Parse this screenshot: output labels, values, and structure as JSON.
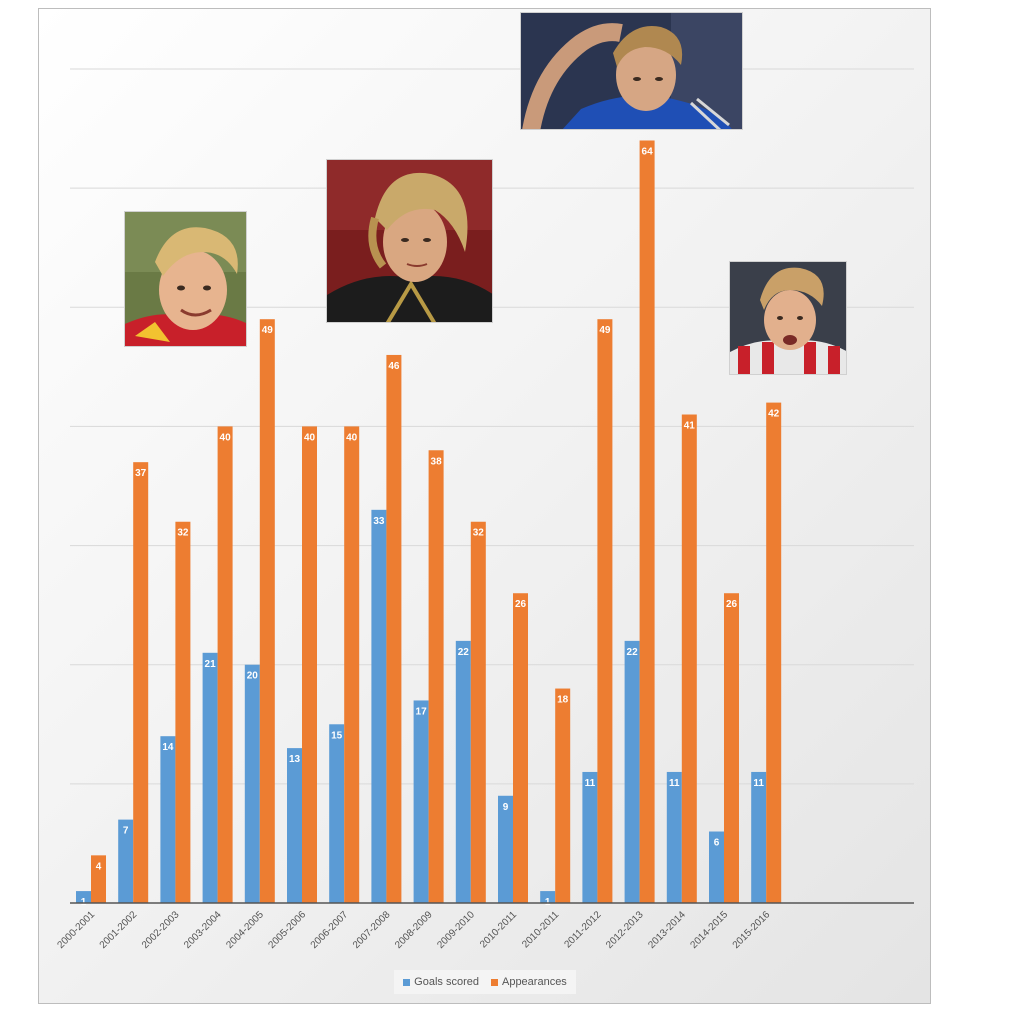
{
  "chart_data": {
    "type": "bar",
    "categories": [
      "2000-2001",
      "2001-2002",
      "2002-2003",
      "2003-2004",
      "2004-2005",
      "2005-2006",
      "2006-2007",
      "2007-2008",
      "2008-2009",
      "2009-2010",
      "2010-2011",
      "2010-2011",
      "2011-2012",
      "2012-2013",
      "2013-2014",
      "2014-2015",
      "2015-2016"
    ],
    "series": [
      {
        "name": "Goals scored",
        "color": "#5b9bd5",
        "values": [
          1,
          7,
          14,
          21,
          20,
          13,
          15,
          33,
          17,
          22,
          9,
          1,
          11,
          22,
          11,
          6,
          11
        ]
      },
      {
        "name": "Appearances",
        "color": "#ed7d31",
        "values": [
          4,
          37,
          32,
          40,
          49,
          40,
          40,
          46,
          38,
          32,
          26,
          18,
          49,
          64,
          41,
          26,
          42
        ]
      }
    ],
    "ylim": [
      0,
      70
    ],
    "grid": true,
    "legend": "bottom",
    "title": "",
    "xlabel": "",
    "ylabel": ""
  },
  "photos": [
    {
      "icon": "player-portrait-red-jersey"
    },
    {
      "icon": "player-portrait-black-jersey"
    },
    {
      "icon": "player-portrait-blue-jersey"
    },
    {
      "icon": "player-portrait-striped-jersey"
    }
  ]
}
